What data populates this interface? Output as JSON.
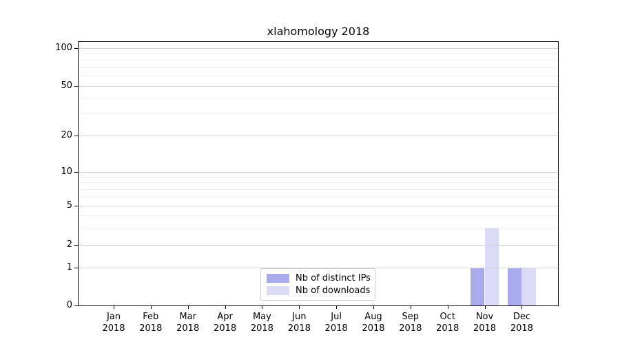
{
  "chart_data": {
    "type": "bar",
    "title": "xlahomology 2018",
    "categories": [
      "Jan 2018",
      "Feb 2018",
      "Mar 2018",
      "Apr 2018",
      "May 2018",
      "Jun 2018",
      "Jul 2018",
      "Aug 2018",
      "Sep 2018",
      "Oct 2018",
      "Nov 2018",
      "Dec 2018"
    ],
    "series": [
      {
        "name": "Nb of distinct IPs",
        "color": "#aaaaee",
        "values": [
          0,
          0,
          0,
          0,
          0,
          0,
          0,
          0,
          0,
          0,
          1,
          1
        ]
      },
      {
        "name": "Nb of downloads",
        "color": "#dbdbf8",
        "values": [
          0,
          0,
          0,
          0,
          0,
          0,
          0,
          0,
          0,
          0,
          3,
          1
        ]
      }
    ],
    "xlabel": "",
    "ylabel": "",
    "yscale": "symlog",
    "ylim": [
      0,
      120
    ],
    "y_major_ticks": [
      0,
      1,
      2,
      5,
      10,
      20,
      50,
      100
    ],
    "y_minor_ticks": [
      3,
      4,
      6,
      7,
      8,
      9,
      30,
      40,
      60,
      70,
      80,
      90
    ],
    "grid": "both",
    "legend_position": "lower center",
    "colors": {
      "axis": "#000000",
      "grid_major": "#d4d4d4",
      "grid_minor": "#f2f2f2",
      "background": "#ffffff"
    }
  }
}
